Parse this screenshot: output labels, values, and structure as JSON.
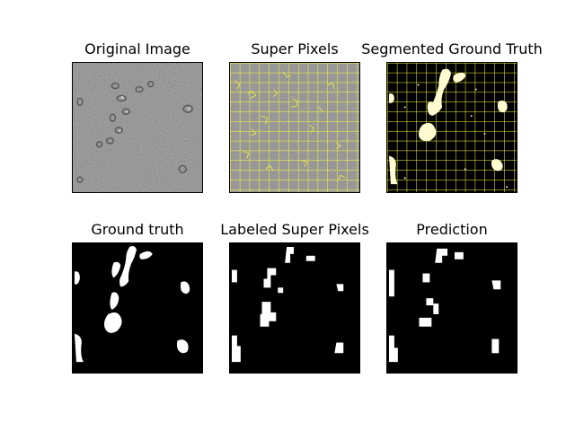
{
  "figure": {
    "panels": [
      {
        "id": "original",
        "title": "Original Image",
        "kind": "micrograph"
      },
      {
        "id": "superpixels",
        "title": "Super Pixels",
        "kind": "superpixel-grid"
      },
      {
        "id": "segmented-gt",
        "title": "Segmented Ground Truth",
        "kind": "overlay"
      },
      {
        "id": "ground-truth",
        "title": "Ground truth",
        "kind": "mask"
      },
      {
        "id": "labeled-sp",
        "title": "Labeled Super Pixels",
        "kind": "mask"
      },
      {
        "id": "prediction",
        "title": "Prediction",
        "kind": "mask"
      }
    ]
  },
  "colors": {
    "background": "#ffffff",
    "micrograph_gray": "#7f7f7f",
    "grid_line": "#ffff33",
    "mask_fg": "#ffffff",
    "mask_bg": "#000000",
    "overlay_fg": "#fffbd0"
  }
}
